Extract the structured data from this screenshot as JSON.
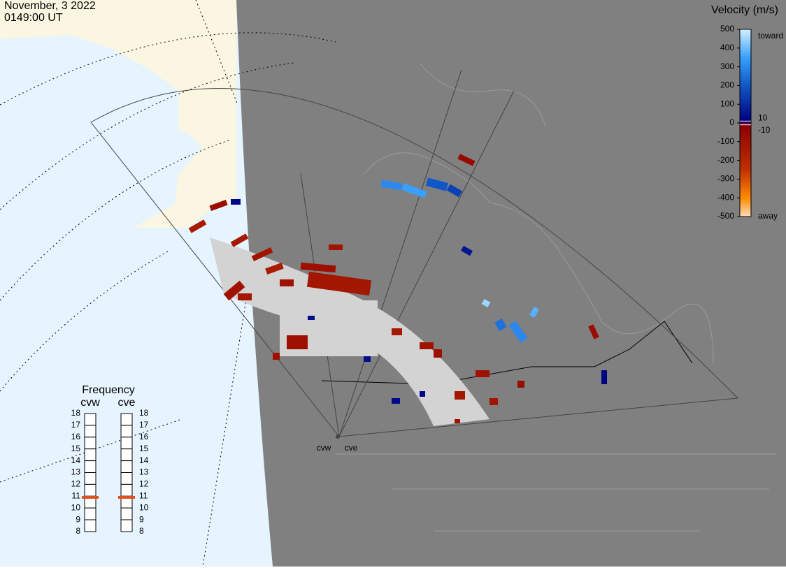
{
  "header": {
    "date": "November, 3 2022",
    "time": "0149:00 UT"
  },
  "velocity_scale": {
    "title": "Velocity (m/s)",
    "lim": [
      -500,
      500
    ],
    "ticks": [
      500,
      400,
      300,
      200,
      100,
      0,
      -100,
      -200,
      -300,
      -400,
      -500
    ],
    "inner_ticks": [
      10,
      -10
    ],
    "toward_label": "toward",
    "away_label": "away"
  },
  "frequency": {
    "title": "Frequency",
    "lim": [
      8,
      18
    ],
    "ticks": [
      18,
      17,
      16,
      15,
      14,
      13,
      12,
      11,
      10,
      9,
      8
    ],
    "radars": [
      {
        "name": "cvw",
        "value": 10.9
      },
      {
        "name": "cve",
        "value": 10.9
      }
    ]
  },
  "site_labels": [
    "cvw",
    "cve"
  ],
  "echoes": {
    "velocities": [
      -120,
      -90,
      -100,
      -150,
      -110,
      -130,
      -80,
      -140,
      -100,
      -120,
      -90,
      -110,
      -130,
      -100,
      -90,
      -120,
      -100,
      -110,
      300,
      350,
      200,
      150,
      60,
      30,
      40,
      450,
      250,
      300,
      380,
      30,
      -60,
      -80,
      -100,
      20,
      30,
      40,
      -90,
      -70
    ]
  }
}
